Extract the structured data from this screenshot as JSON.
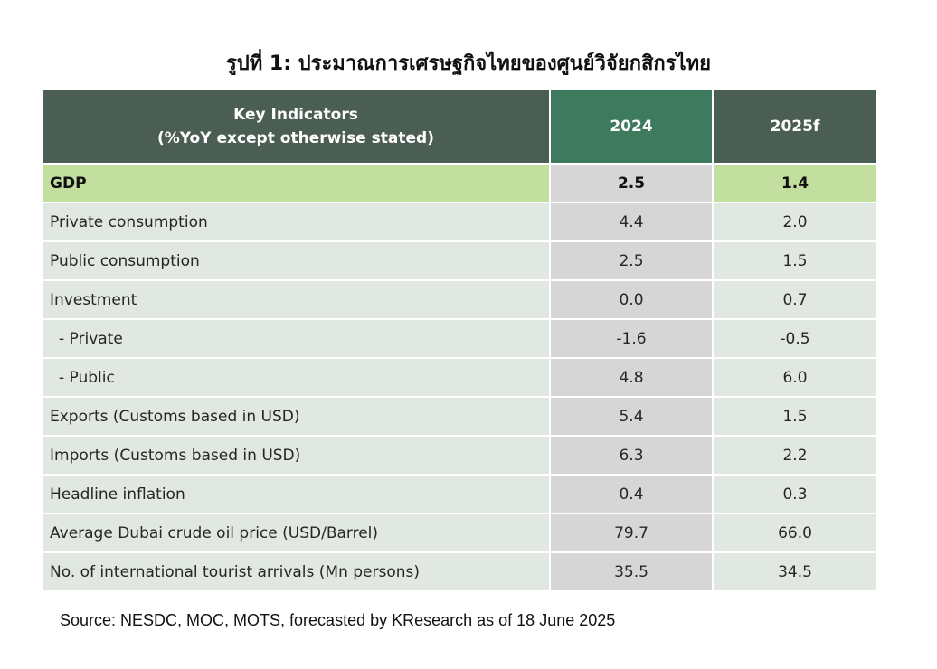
{
  "title": "รูปที่ 1: ประมาณการเศรษฐกิจไทยของศูนย์วิจัยกสิกรไทย",
  "table": {
    "header": {
      "indicator_line1": "Key Indicators",
      "indicator_line2": "(%YoY except otherwise stated)",
      "col_2024": "2024",
      "col_2025": "2025f"
    },
    "rows": [
      {
        "label": "GDP",
        "y2024": "2.5",
        "y2025": "1.4"
      },
      {
        "label": "Private consumption",
        "y2024": "4.4",
        "y2025": "2.0"
      },
      {
        "label": "Public consumption",
        "y2024": "2.5",
        "y2025": "1.5"
      },
      {
        "label": "Investment",
        "y2024": "0.0",
        "y2025": "0.7"
      },
      {
        "label": "- Private",
        "y2024": "-1.6",
        "y2025": "-0.5"
      },
      {
        "label": "- Public",
        "y2024": "4.8",
        "y2025": "6.0"
      },
      {
        "label": "Exports (Customs based in USD)",
        "y2024": "5.4",
        "y2025": "1.5"
      },
      {
        "label": "Imports (Customs based in USD)",
        "y2024": "6.3",
        "y2025": "2.2"
      },
      {
        "label": "Headline inflation",
        "y2024": "0.4",
        "y2025": "0.3"
      },
      {
        "label": "Average Dubai crude oil price (USD/Barrel)",
        "y2024": "79.7",
        "y2025": "66.0"
      },
      {
        "label": "No. of international tourist arrivals (Mn persons)",
        "y2024": "35.5",
        "y2025": "34.5"
      }
    ]
  },
  "source": "Source: NESDC, MOC, MOTS, forecasted by KResearch as of 18 June 2025",
  "colors": {
    "header_bg": "#4a5e53",
    "header_2024_bg": "#3e7a5d",
    "gdp_row_bg": "#c2dfa0",
    "row_bg": "#e0e8e1",
    "col_2024_bg": "#d6d6d6"
  }
}
